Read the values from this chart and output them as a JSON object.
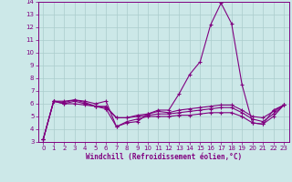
{
  "x": [
    0,
    1,
    2,
    3,
    4,
    5,
    6,
    7,
    8,
    9,
    10,
    11,
    12,
    13,
    14,
    15,
    16,
    17,
    18,
    19,
    20,
    21,
    22,
    23
  ],
  "line1": [
    3.2,
    6.2,
    6.2,
    6.3,
    6.2,
    6.0,
    6.2,
    4.2,
    4.5,
    4.6,
    5.2,
    5.5,
    5.5,
    6.8,
    8.3,
    9.3,
    12.2,
    13.9,
    12.3,
    7.5,
    4.5,
    4.4,
    5.5,
    5.9
  ],
  "line2": [
    3.2,
    6.2,
    6.1,
    6.3,
    6.1,
    5.8,
    5.7,
    4.9,
    4.9,
    5.1,
    5.2,
    5.4,
    5.3,
    5.5,
    5.6,
    5.7,
    5.8,
    5.9,
    5.9,
    5.5,
    5.0,
    4.9,
    5.4,
    5.9
  ],
  "line3": [
    3.2,
    6.2,
    6.0,
    6.0,
    5.9,
    5.8,
    5.6,
    4.2,
    4.6,
    4.8,
    5.0,
    5.0,
    5.0,
    5.1,
    5.1,
    5.2,
    5.3,
    5.3,
    5.3,
    5.0,
    4.5,
    4.4,
    5.0,
    5.9
  ],
  "line4": [
    3.2,
    6.2,
    6.0,
    6.2,
    6.0,
    5.8,
    5.8,
    4.9,
    4.9,
    5.0,
    5.1,
    5.2,
    5.2,
    5.3,
    5.4,
    5.5,
    5.6,
    5.7,
    5.7,
    5.3,
    4.8,
    4.6,
    5.2,
    5.9
  ],
  "line_color": "#800080",
  "bg_color": "#cce8e8",
  "grid_color": "#aacccc",
  "xlabel": "Windchill (Refroidissement éolien,°C)",
  "ylim": [
    3,
    14
  ],
  "xlim": [
    -0.5,
    23.5
  ],
  "yticks": [
    3,
    4,
    5,
    6,
    7,
    8,
    9,
    10,
    11,
    12,
    13,
    14
  ],
  "xticks": [
    0,
    1,
    2,
    3,
    4,
    5,
    6,
    7,
    8,
    9,
    10,
    11,
    12,
    13,
    14,
    15,
    16,
    17,
    18,
    19,
    20,
    21,
    22,
    23
  ]
}
